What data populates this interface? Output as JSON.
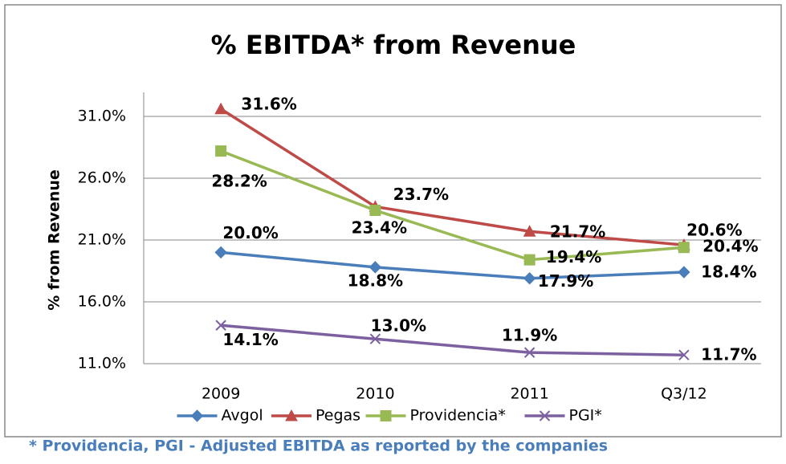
{
  "chart_data": {
    "type": "line",
    "title": "% EBITDA* from Revenue",
    "y_label": "% from Revenue",
    "categories": [
      "2009",
      "2010",
      "2011",
      "Q3/12"
    ],
    "series": [
      {
        "name": "Avgol",
        "color": "#4a7ebb",
        "marker": "diamond",
        "values": [
          20.0,
          18.8,
          17.9,
          18.4
        ],
        "value_labels": [
          "20.0%",
          "18.8%",
          "17.9%",
          "18.4%"
        ]
      },
      {
        "name": "Pegas",
        "color": "#be4b48",
        "marker": "triangle",
        "values": [
          31.6,
          23.7,
          21.7,
          20.6
        ],
        "value_labels": [
          "31.6%",
          "23.7%",
          "21.7%",
          "20.6%"
        ]
      },
      {
        "name": "Providencia*",
        "color": "#98b954",
        "marker": "square",
        "values": [
          28.2,
          23.4,
          19.4,
          20.4
        ],
        "value_labels": [
          "28.2%",
          "23.4%",
          "19.4%",
          "20.4%"
        ]
      },
      {
        "name": "PGI*",
        "color": "#7d60a0",
        "marker": "x",
        "values": [
          14.1,
          13.0,
          11.9,
          11.7
        ],
        "value_labels": [
          "14.1%",
          "13.0%",
          "11.9%",
          "11.7%"
        ]
      }
    ],
    "ylim": [
      11,
      31
    ],
    "yticks": [
      {
        "value": 11,
        "label": "11.0%"
      },
      {
        "value": 16,
        "label": "16.0%"
      },
      {
        "value": 21,
        "label": "21.0%"
      },
      {
        "value": 26,
        "label": "26.0%"
      },
      {
        "value": 31,
        "label": "31.0%"
      }
    ],
    "grid": true,
    "legend": "bottom",
    "footnote": "* Providencia, PGI - Adjusted EBITDA as reported by the companies"
  }
}
